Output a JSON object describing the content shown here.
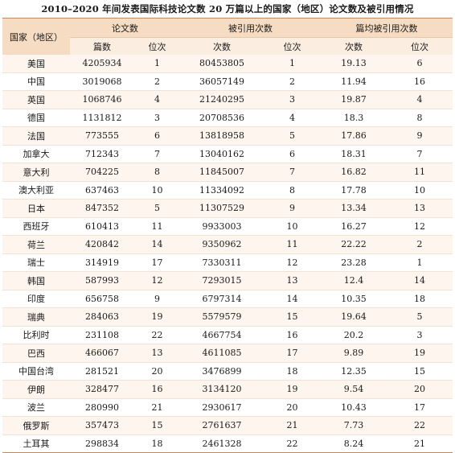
{
  "title": "2010–2020 年间发表国际科技论文数 20 万篇以上的国家（地区）论文数及被引用情况",
  "headers": {
    "country": "国家（地区）",
    "papers_group": "论文数",
    "citations_group": "被引用次数",
    "avg_group": "篇均被引用次数",
    "papers_count": "篇数",
    "papers_rank": "位次",
    "citations_count": "次数",
    "citations_rank": "位次",
    "avg_value": "次数",
    "avg_rank": "位次"
  },
  "rows": [
    {
      "country": "美国",
      "papers": "4205934",
      "papers_rank": "1",
      "citations": "80453805",
      "citations_rank": "1",
      "avg": "19.13",
      "avg_rank": "6"
    },
    {
      "country": "中国",
      "papers": "3019068",
      "papers_rank": "2",
      "citations": "36057149",
      "citations_rank": "2",
      "avg": "11.94",
      "avg_rank": "16"
    },
    {
      "country": "英国",
      "papers": "1068746",
      "papers_rank": "4",
      "citations": "21240295",
      "citations_rank": "3",
      "avg": "19.87",
      "avg_rank": "4"
    },
    {
      "country": "德国",
      "papers": "1131812",
      "papers_rank": "3",
      "citations": "20708536",
      "citations_rank": "4",
      "avg": "18.3",
      "avg_rank": "8"
    },
    {
      "country": "法国",
      "papers": "773555",
      "papers_rank": "6",
      "citations": "13818958",
      "citations_rank": "5",
      "avg": "17.86",
      "avg_rank": "9"
    },
    {
      "country": "加拿大",
      "papers": "712343",
      "papers_rank": "7",
      "citations": "13040162",
      "citations_rank": "6",
      "avg": "18.31",
      "avg_rank": "7"
    },
    {
      "country": "意大利",
      "papers": "704225",
      "papers_rank": "8",
      "citations": "11845007",
      "citations_rank": "7",
      "avg": "16.82",
      "avg_rank": "11"
    },
    {
      "country": "澳大利亚",
      "papers": "637463",
      "papers_rank": "10",
      "citations": "11334092",
      "citations_rank": "8",
      "avg": "17.78",
      "avg_rank": "10"
    },
    {
      "country": "日本",
      "papers": "847352",
      "papers_rank": "5",
      "citations": "11307529",
      "citations_rank": "9",
      "avg": "13.34",
      "avg_rank": "13"
    },
    {
      "country": "西班牙",
      "papers": "610413",
      "papers_rank": "11",
      "citations": "9933003",
      "citations_rank": "10",
      "avg": "16.27",
      "avg_rank": "12"
    },
    {
      "country": "荷兰",
      "papers": "420842",
      "papers_rank": "14",
      "citations": "9350962",
      "citations_rank": "11",
      "avg": "22.22",
      "avg_rank": "2"
    },
    {
      "country": "瑞士",
      "papers": "314919",
      "papers_rank": "17",
      "citations": "7330311",
      "citations_rank": "12",
      "avg": "23.28",
      "avg_rank": "1"
    },
    {
      "country": "韩国",
      "papers": "587993",
      "papers_rank": "12",
      "citations": "7293015",
      "citations_rank": "13",
      "avg": "12.4",
      "avg_rank": "14"
    },
    {
      "country": "印度",
      "papers": "656758",
      "papers_rank": "9",
      "citations": "6797314",
      "citations_rank": "14",
      "avg": "10.35",
      "avg_rank": "18"
    },
    {
      "country": "瑞典",
      "papers": "284063",
      "papers_rank": "19",
      "citations": "5579579",
      "citations_rank": "15",
      "avg": "19.64",
      "avg_rank": "5"
    },
    {
      "country": "比利时",
      "papers": "231108",
      "papers_rank": "22",
      "citations": "4667754",
      "citations_rank": "16",
      "avg": "20.2",
      "avg_rank": "3"
    },
    {
      "country": "巴西",
      "papers": "466067",
      "papers_rank": "13",
      "citations": "4611085",
      "citations_rank": "17",
      "avg": "9.89",
      "avg_rank": "19"
    },
    {
      "country": "中国台湾",
      "papers": "281521",
      "papers_rank": "20",
      "citations": "3476899",
      "citations_rank": "18",
      "avg": "12.35",
      "avg_rank": "15"
    },
    {
      "country": "伊朗",
      "papers": "328477",
      "papers_rank": "16",
      "citations": "3134120",
      "citations_rank": "19",
      "avg": "9.54",
      "avg_rank": "20"
    },
    {
      "country": "波兰",
      "papers": "280990",
      "papers_rank": "21",
      "citations": "2930617",
      "citations_rank": "20",
      "avg": "10.43",
      "avg_rank": "17"
    },
    {
      "country": "俄罗斯",
      "papers": "357473",
      "papers_rank": "15",
      "citations": "2761637",
      "citations_rank": "21",
      "avg": "7.73",
      "avg_rank": "22"
    },
    {
      "country": "土耳其",
      "papers": "298834",
      "papers_rank": "18",
      "citations": "2461328",
      "citations_rank": "22",
      "avg": "8.24",
      "avg_rank": "21"
    }
  ]
}
